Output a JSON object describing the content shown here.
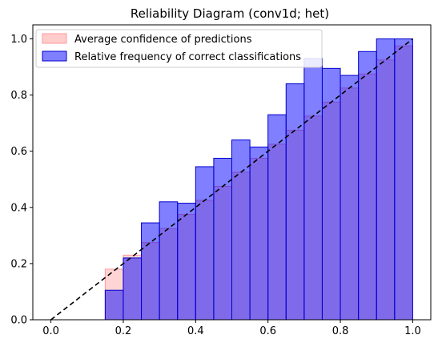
{
  "chart_data": {
    "type": "bar",
    "title": "Reliability Diagram (conv1d; het)",
    "xlabel": "",
    "ylabel": "",
    "xlim": [
      -0.05,
      1.05
    ],
    "ylim": [
      0,
      1.05
    ],
    "xticks": [
      "0.0",
      "0.2",
      "0.4",
      "0.6",
      "0.8",
      "1.0"
    ],
    "yticks": [
      "0.0",
      "0.2",
      "0.4",
      "0.6",
      "0.8",
      "1.0"
    ],
    "bin_width": 0.05,
    "bin_starts": [
      0.15,
      0.2,
      0.25,
      0.3,
      0.35,
      0.4,
      0.45,
      0.5,
      0.55,
      0.6,
      0.65,
      0.7,
      0.75,
      0.8,
      0.85,
      0.9,
      0.95
    ],
    "series": [
      {
        "name": "Average confidence of predictions",
        "color": "#ffcccc",
        "edge": "#ff9999",
        "values": [
          0.18,
          0.23,
          0.275,
          0.325,
          0.375,
          0.425,
          0.475,
          0.525,
          0.575,
          0.625,
          0.675,
          0.725,
          0.775,
          0.825,
          0.875,
          0.925,
          0.975
        ]
      },
      {
        "name": "Relative frequency of correct classifications",
        "color": "#0000ff",
        "edge": "#0000cc",
        "values": [
          0.105,
          0.22,
          0.345,
          0.42,
          0.415,
          0.545,
          0.575,
          0.64,
          0.615,
          0.73,
          0.84,
          0.93,
          0.895,
          0.87,
          0.955,
          1.0,
          1.0
        ]
      }
    ],
    "reference_line": {
      "x": [
        0,
        1
      ],
      "y": [
        0,
        1
      ],
      "style": "dashed",
      "color": "#000000"
    },
    "legend": "top-left",
    "grid": false
  }
}
